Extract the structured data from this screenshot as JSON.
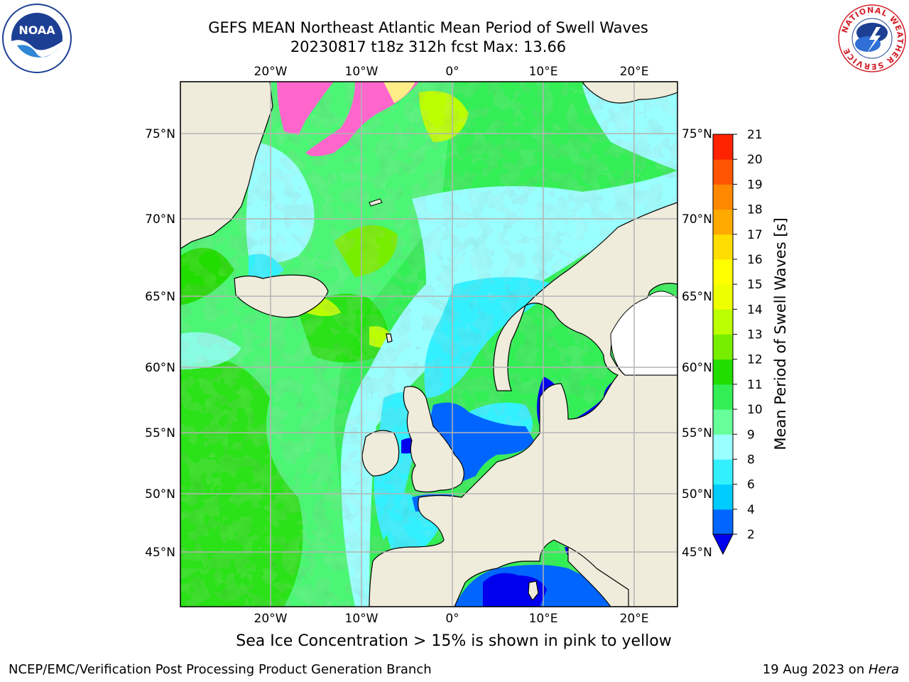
{
  "header": {
    "title_line1": "GEFS MEAN Northeast Atlantic Mean Period of Swell Waves",
    "title_line2": "20230817 t18z 312h fcst   Max: 13.66"
  },
  "logos": {
    "left": {
      "name": "noaa-logo",
      "text": "NOAA"
    },
    "right": {
      "name": "nws-logo",
      "text": "NATIONAL WEATHER SERVICE"
    }
  },
  "map": {
    "lon_labels": [
      "20°W",
      "10°W",
      "0°",
      "10°E",
      "20°E"
    ],
    "lat_labels": [
      "75°N",
      "70°N",
      "65°N",
      "60°N",
      "55°N",
      "50°N",
      "45°N"
    ],
    "colors": {
      "land": "#efecdc",
      "grid": "#b4b4b4",
      "coast": "#000000"
    }
  },
  "colorbar": {
    "label": "Mean Period of Swell Waves [s]",
    "ticks": [
      "2",
      "4",
      "6",
      "8",
      "9",
      "10",
      "11",
      "12",
      "13",
      "14",
      "15",
      "16",
      "17",
      "18",
      "19",
      "20",
      "21"
    ],
    "colors": [
      "#0066ff",
      "#00ccff",
      "#33f0ff",
      "#99ffff",
      "#66ff99",
      "#33ee55",
      "#22dd00",
      "#77ee00",
      "#bbff00",
      "#eeff00",
      "#ffff00",
      "#ffdd00",
      "#ffaa00",
      "#ff8800",
      "#ff5500",
      "#ff2200",
      "#ff0000"
    ],
    "under_color": "#0000ee"
  },
  "footer": {
    "note": "Sea Ice Concentration > 15% is shown in pink to yellow",
    "credit_left": "NCEP/EMC/Verification Post Processing Product Generation Branch",
    "credit_right_date": "19 Aug 2023 on ",
    "credit_right_host": "Hera"
  }
}
